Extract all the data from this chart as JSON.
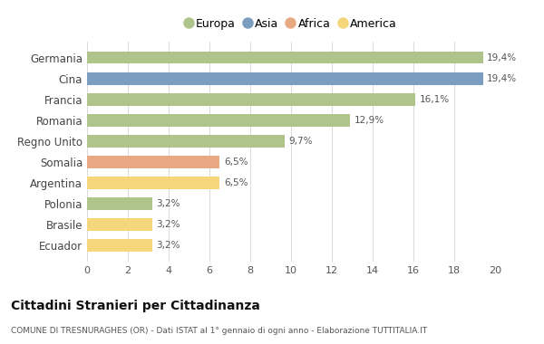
{
  "categories": [
    "Germania",
    "Cina",
    "Francia",
    "Romania",
    "Regno Unito",
    "Somalia",
    "Argentina",
    "Polonia",
    "Brasile",
    "Ecuador"
  ],
  "values": [
    19.4,
    19.4,
    16.1,
    12.9,
    9.7,
    6.5,
    6.5,
    3.2,
    3.2,
    3.2
  ],
  "labels": [
    "19,4%",
    "19,4%",
    "16,1%",
    "12,9%",
    "9,7%",
    "6,5%",
    "6,5%",
    "3,2%",
    "3,2%",
    "3,2%"
  ],
  "bar_colors": [
    "#aec48a",
    "#7b9dc0",
    "#aec48a",
    "#aec48a",
    "#aec48a",
    "#e8a882",
    "#f5d67a",
    "#aec48a",
    "#f5d67a",
    "#f5d67a"
  ],
  "legend_labels": [
    "Europa",
    "Asia",
    "Africa",
    "America"
  ],
  "legend_colors": [
    "#aec48a",
    "#7b9dc0",
    "#e8a882",
    "#f5d67a"
  ],
  "title": "Cittadini Stranieri per Cittadinanza",
  "subtitle": "COMUNE DI TRESNURAGHES (OR) - Dati ISTAT al 1° gennaio di ogni anno - Elaborazione TUTTITALIA.IT",
  "xlim": [
    0,
    20
  ],
  "xticks": [
    0,
    2,
    4,
    6,
    8,
    10,
    12,
    14,
    16,
    18,
    20
  ],
  "background_color": "#ffffff",
  "bar_height": 0.6
}
